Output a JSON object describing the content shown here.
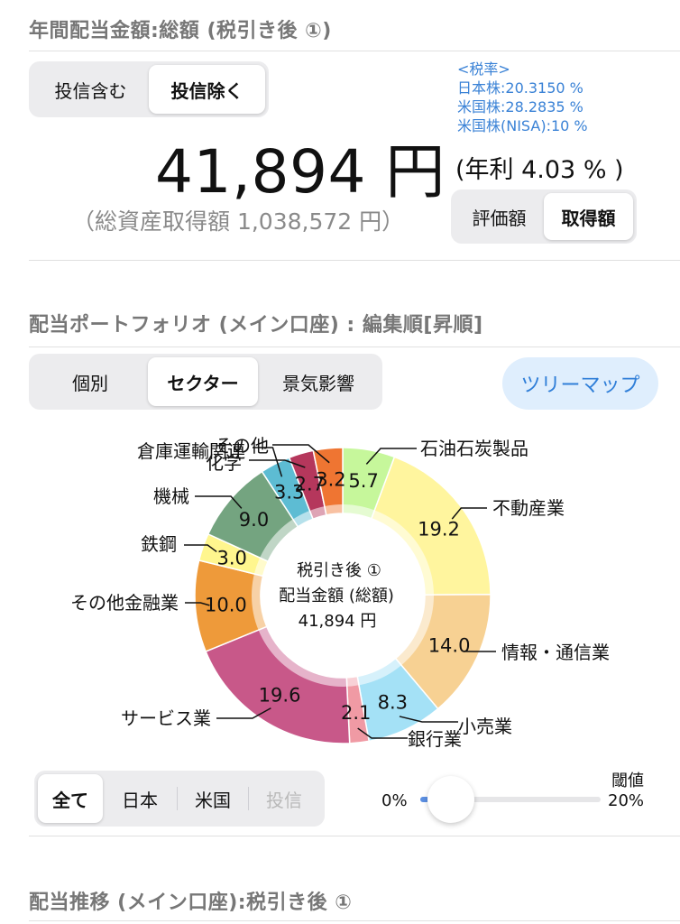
{
  "section1": {
    "title": "年間配当金額:総額 (税引き後 ①)"
  },
  "fund_toggle": {
    "options": [
      "投信含む",
      "投信除く"
    ],
    "selected": "投信除く"
  },
  "amount": {
    "value": "41,894 円",
    "total_assets": "（総資産取得額 1,038,572 円）",
    "annual_rate": "(年利 4.03 % )"
  },
  "tax_rates": {
    "title": "<税率>",
    "lines": [
      "日本株:20.3150 %",
      "米国株:28.2835 %",
      "米国株(NISA):10 %"
    ]
  },
  "value_toggle": {
    "options": [
      "評価額",
      "取得額"
    ],
    "selected": "取得額"
  },
  "section2": {
    "title": "配当ポートフォリオ (メイン口座) : 編集順[昇順]"
  },
  "view_toggle": {
    "options": [
      "個別",
      "セクター",
      "景気影響"
    ],
    "selected": "セクター"
  },
  "treemap_button": "ツリーマップ",
  "donut_center": {
    "line1": "税引き後 ①",
    "line2": "配当金額 (総額)",
    "line3": "41,894 円"
  },
  "chart_data": {
    "type": "pie",
    "categories": [
      "石油石炭製品",
      "不動産業",
      "情報・通信業",
      "小売業",
      "銀行業",
      "サービス業",
      "その他金融業",
      "鉄鋼",
      "機械",
      "倉庫運輸関連",
      "化学",
      "その他"
    ],
    "values": [
      5.7,
      19.2,
      14.0,
      8.3,
      2.1,
      19.6,
      10.0,
      3.0,
      9.0,
      3.3,
      2.7,
      3.2
    ],
    "labels": [
      "5.7",
      "19.2",
      "14.0",
      "8.3",
      "2.1",
      "19.6",
      "10.0",
      "3.0",
      "9.0",
      "3.3",
      "2.7",
      "3.2"
    ],
    "colors": [
      "#c6f79b",
      "#fff59e",
      "#f7d193",
      "#a4e1f6",
      "#f09aa4",
      "#c85889",
      "#ee9a3a",
      "#fff68e",
      "#74a480",
      "#5dbcd3",
      "#b5375c",
      "#ef7532"
    ],
    "hole": "donut",
    "center_text": [
      "税引き後 ①",
      "配当金額 (総額)",
      "41,894 円"
    ]
  },
  "region_filter": {
    "options": [
      "全て",
      "日本",
      "米国",
      "投信"
    ],
    "selected": "全て",
    "disabled": [
      "投信"
    ]
  },
  "threshold": {
    "title": "閾値",
    "min_label": "0%",
    "max_label": "20%",
    "value": 0.05
  },
  "section3": {
    "title": "配当推移 (メイン口座):税引き後 ①"
  }
}
